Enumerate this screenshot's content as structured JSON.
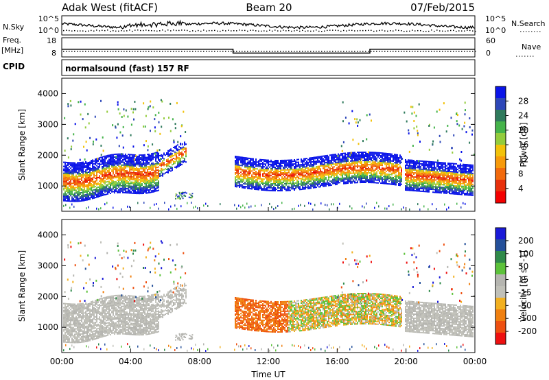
{
  "header": {
    "station": "Adak West (fitACF)",
    "beam": "Beam 20",
    "date": "07/Feb/2015"
  },
  "noise_panel": {
    "left_label": "N.Sky",
    "right_label": "N.Search",
    "left_ticks": [
      "10^5",
      "10^0"
    ],
    "right_ticks": [
      "10^5",
      "10^0"
    ]
  },
  "freq_panel": {
    "left_label_1": "Freq.",
    "left_label_2": "[MHz]",
    "right_label": "Nave",
    "left_ticks": [
      "18",
      "8"
    ],
    "right_ticks": [
      "60",
      "0"
    ]
  },
  "cpid_panel": {
    "label": "CPID",
    "text": "normalsound (fast) 157 RF"
  },
  "power_panel": {
    "ylabel": "Slant Range [km]",
    "yticks": [
      "4000",
      "3000",
      "2000",
      "1000"
    ],
    "colorbar_label": "Power [dB]",
    "colorbar_ticks": [
      "28",
      "24",
      "20",
      "16",
      "12",
      "8",
      "4"
    ],
    "colors": [
      "#0a14e8",
      "#2d47b8",
      "#2f7a5c",
      "#45b34a",
      "#93cc3c",
      "#f2c20a",
      "#f79a0a",
      "#f26a0c",
      "#e8300c",
      "#f40000"
    ]
  },
  "velocity_panel": {
    "ylabel": "Slant Range [km]",
    "yticks": [
      "4000",
      "3000",
      "2000",
      "1000"
    ],
    "colorbar_label": "Velocity [m s^-1]",
    "colorbar_ticks": [
      "200",
      "100",
      "50",
      "15",
      "-15",
      "-50",
      "-100",
      "-200"
    ],
    "colors": [
      "#1a1ad8",
      "#24509a",
      "#2f8a4a",
      "#5cc23a",
      "#b5b5b0",
      "#c0c0b8",
      "#f2b020",
      "#f08010",
      "#ee5010",
      "#ee1010"
    ]
  },
  "x_axis": {
    "label": "Time UT",
    "ticks": [
      "00:00",
      "04:00",
      "08:00",
      "12:00",
      "16:00",
      "20:00",
      "00:00"
    ]
  },
  "chart_data": {
    "type": "heatmap",
    "title": "Adak West (fitACF)",
    "x_range_hours": [
      0,
      24
    ],
    "y_range_km": [
      180,
      4500
    ],
    "frequency_mhz_steps": [
      {
        "start_h": 0,
        "end_h": 9.95,
        "value": 12
      },
      {
        "start_h": 9.95,
        "end_h": 17.9,
        "value": 10
      },
      {
        "start_h": 17.9,
        "end_h": 24,
        "value": 12
      }
    ],
    "power_regions": [
      {
        "start_h": 0,
        "end_h": 5.2,
        "range_km": [
          700,
          2000
        ],
        "peak_db": 28
      },
      {
        "start_h": 10.1,
        "end_h": 19.3,
        "range_km": [
          1100,
          2000
        ],
        "peak_db": 28
      },
      {
        "start_h": 20.3,
        "end_h": 24,
        "range_km": [
          900,
          1900
        ],
        "peak_db": 28
      }
    ]
  }
}
